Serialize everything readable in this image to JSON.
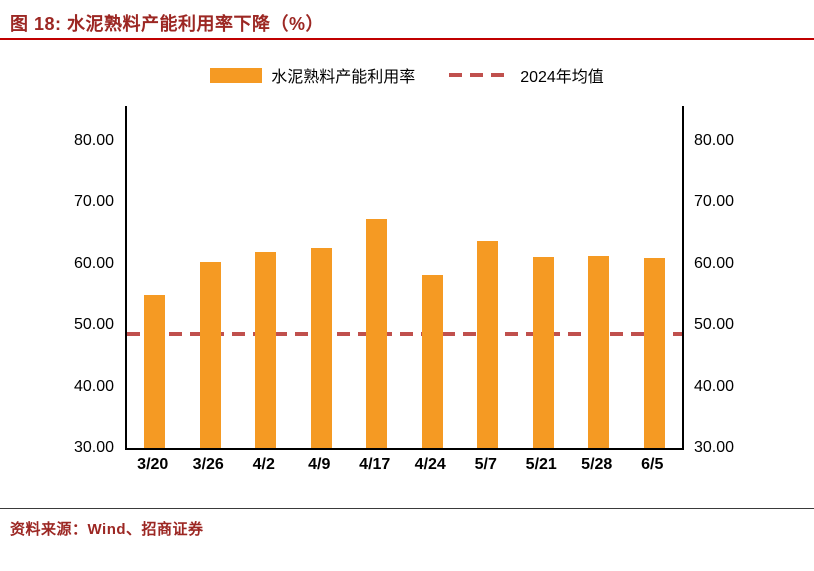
{
  "header": {
    "title": "图 18:  水泥熟料产能利用率下降（%）"
  },
  "legend": {
    "bar_label": "水泥熟料产能利用率",
    "line_label": "2024年均值"
  },
  "chart_data": {
    "type": "bar",
    "title": "水泥熟料产能利用率下降（%）",
    "categories": [
      "3/20",
      "3/26",
      "4/2",
      "4/9",
      "4/17",
      "4/24",
      "5/7",
      "5/21",
      "5/28",
      "6/5"
    ],
    "series": [
      {
        "name": "水泥熟料产能利用率",
        "values": [
          55.0,
          60.3,
          61.9,
          62.5,
          67.3,
          58.2,
          63.8,
          61.1,
          61.2,
          60.9
        ]
      }
    ],
    "average_line": {
      "name": "2024年均值",
      "value": 48.6
    },
    "xlabel": "",
    "ylabel": "",
    "ylim": [
      30,
      80
    ],
    "yticks": [
      30,
      40,
      50,
      60,
      70,
      80
    ],
    "ytick_labels": [
      "30.00",
      "40.00",
      "50.00",
      "60.00",
      "70.00",
      "80.00"
    ],
    "grid": false,
    "legend_position": "top"
  },
  "colors": {
    "bar": "#F59A23",
    "avg_line": "#C0504D",
    "accent": "#9C2723",
    "rule": "#C00000",
    "axis": "#000000"
  },
  "footer": {
    "source": "资料来源：Wind、招商证券"
  }
}
